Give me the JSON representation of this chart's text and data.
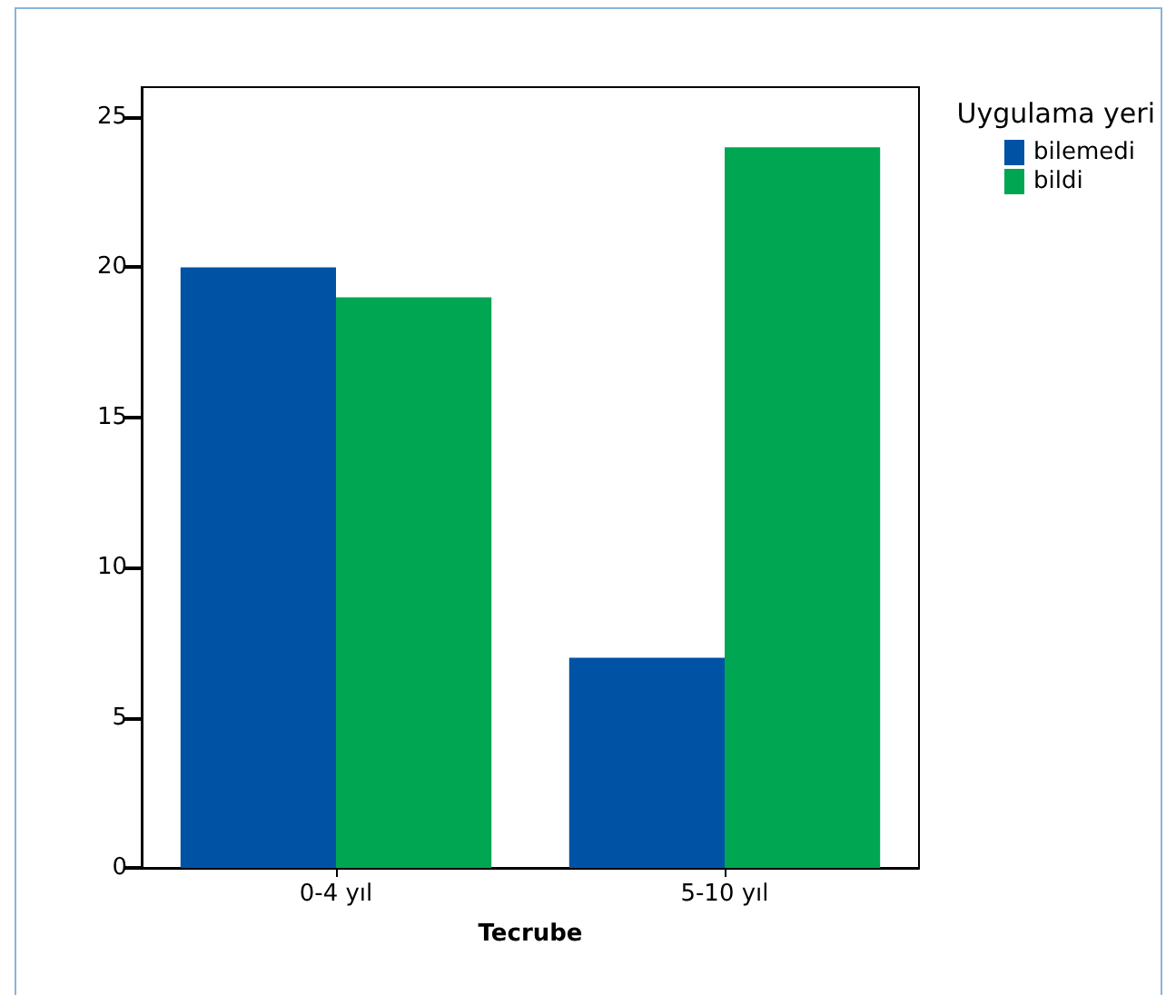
{
  "chart_data": {
    "type": "bar",
    "xlabel": "Tecrube",
    "legend_title": "Uygulama yeri",
    "categories": [
      "0-4 yıl",
      "5-10 yıl"
    ],
    "series": [
      {
        "name": "bilemedi",
        "color": "#0052a5",
        "values": [
          20,
          7
        ]
      },
      {
        "name": "bildi",
        "color": "#00a651",
        "values": [
          19,
          24
        ]
      }
    ],
    "ylim": [
      0,
      26
    ],
    "yticks": [
      0,
      5,
      10,
      15,
      20,
      25
    ],
    "grid": false,
    "legend": "top right"
  }
}
